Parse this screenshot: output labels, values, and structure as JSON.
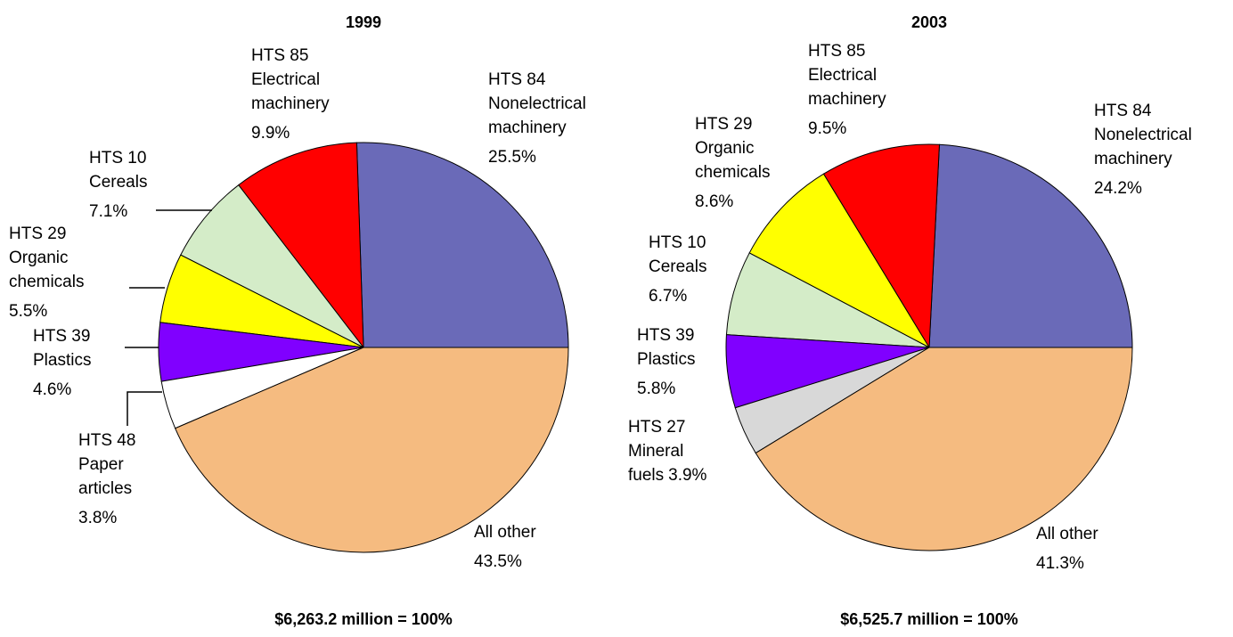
{
  "chart_data": [
    {
      "type": "pie",
      "title": "1999",
      "footer": "$6,263.2  million = 100%",
      "categories": [
        "HTS 84 Nonelectrical machinery",
        "HTS 85 Electrical machinery",
        "HTS 10 Cereals",
        "HTS 29 Organic chemicals",
        "HTS 39 Plastics",
        "HTS 48 Paper articles",
        "All other"
      ],
      "values": [
        25.5,
        9.9,
        7.1,
        5.5,
        4.6,
        3.8,
        43.5
      ],
      "value_labels": [
        "25.5%",
        "9.9%",
        "7.1%",
        "5.5%",
        "4.6%",
        "3.8%",
        "43.5%"
      ],
      "colors": [
        "#6a6ab8",
        "#ff0000",
        "#d4ecc8",
        "#ffff00",
        "#8000ff",
        "#ffffff",
        "#f5bb80"
      ]
    },
    {
      "type": "pie",
      "title": "2003",
      "footer": "$6,525.7  million = 100%",
      "categories": [
        "HTS 84 Nonelectrical machinery",
        "HTS 85 Electrical machinery",
        "HTS 29 Organic chemicals",
        "HTS 10 Cereals",
        "HTS 39 Plastics",
        "HTS 27 Mineral fuels",
        "All other"
      ],
      "values": [
        24.2,
        9.5,
        8.6,
        6.7,
        5.8,
        3.9,
        41.3
      ],
      "value_labels": [
        "24.2%",
        "9.5%",
        "8.6%",
        "6.7%",
        "5.8%",
        "3.9%",
        "41.3%"
      ],
      "colors": [
        "#6a6ab8",
        "#ff0000",
        "#ffff00",
        "#d4ecc8",
        "#8000ff",
        "#d8d8d8",
        "#f5bb80"
      ]
    }
  ]
}
